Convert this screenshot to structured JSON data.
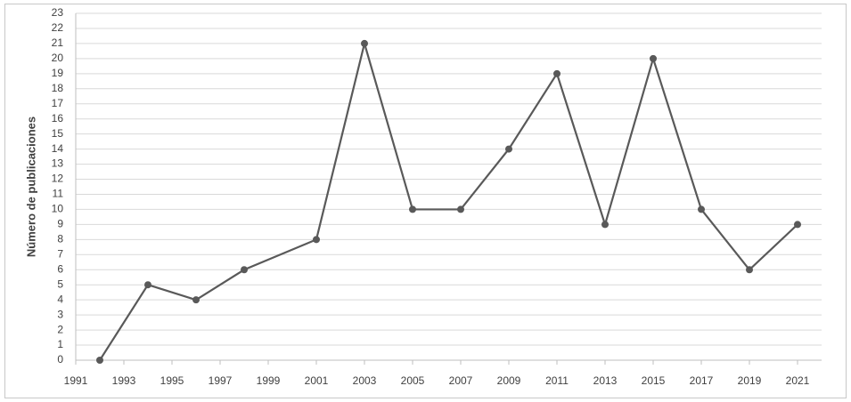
{
  "chart_data": {
    "type": "line",
    "ylabel": "Número de publicaciones",
    "x": [
      1992,
      1994,
      1996,
      1998,
      2001,
      2003,
      2005,
      2007,
      2009,
      2011,
      2013,
      2015,
      2017,
      2019,
      2021
    ],
    "series": [
      {
        "color": "#595959",
        "values": [
          0,
          5,
          4,
          6,
          8,
          21,
          10,
          10,
          14,
          19,
          9,
          20,
          10,
          6,
          9
        ]
      }
    ],
    "xlim": [
      1991,
      2022
    ],
    "xticks": [
      1991,
      1993,
      1995,
      1997,
      1999,
      2001,
      2003,
      2005,
      2007,
      2009,
      2011,
      2013,
      2015,
      2017,
      2019,
      2021
    ],
    "ylim": [
      0,
      23
    ],
    "yticks": [
      0,
      1,
      2,
      3,
      4,
      5,
      6,
      7,
      8,
      9,
      10,
      11,
      12,
      13,
      14,
      15,
      16,
      17,
      18,
      19,
      20,
      21,
      22,
      23
    ],
    "grid": true
  }
}
